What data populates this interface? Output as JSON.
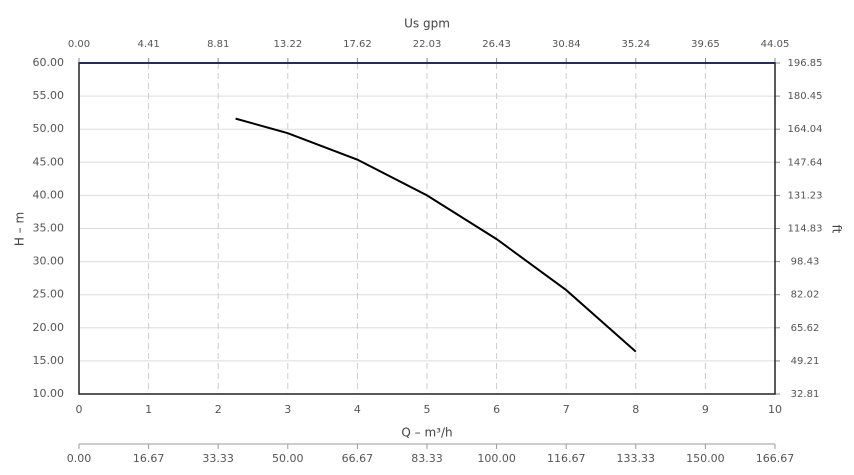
{
  "chart_data": {
    "type": "line",
    "xlabel": "Q – m³/h",
    "ylabel": "H – m",
    "y2label": "ft",
    "x": [
      2.25,
      3,
      4,
      5,
      6,
      7,
      8
    ],
    "series": [
      {
        "color": "#000000",
        "values": [
          51.6,
          49.4,
          45.4,
          40.0,
          33.4,
          25.7,
          16.4
        ]
      }
    ],
    "xlim": [
      0,
      10
    ],
    "xticks": [
      0,
      1,
      2,
      3,
      4,
      5,
      6,
      7,
      8,
      9,
      10
    ],
    "ylim": [
      10,
      60
    ],
    "yticks": [
      {
        "value": 10,
        "label": "10.00"
      },
      {
        "value": 15,
        "label": "15.00"
      },
      {
        "value": 20,
        "label": "20.00"
      },
      {
        "value": 25,
        "label": "25.00"
      },
      {
        "value": 30,
        "label": "30.00"
      },
      {
        "value": 35,
        "label": "35.00"
      },
      {
        "value": 40,
        "label": "40.00"
      },
      {
        "value": 45,
        "label": "45.00"
      },
      {
        "value": 50,
        "label": "50.00"
      },
      {
        "value": 55,
        "label": "55.00"
      },
      {
        "value": 60,
        "label": "60.00"
      }
    ],
    "y2lim": [
      32.81,
      196.85
    ],
    "y2ticks": [
      32.81,
      49.21,
      65.62,
      82.02,
      98.43,
      114.83,
      131.23,
      147.64,
      164.04,
      180.45,
      196.85
    ],
    "top_axis": {
      "label": "Us gpm",
      "lim": [
        0,
        44.05
      ],
      "ticks": [
        {
          "value": 0,
          "label": "0.00"
        },
        4.41,
        8.81,
        13.22,
        17.62,
        22.03,
        26.43,
        30.84,
        35.24,
        39.65,
        44.05
      ]
    },
    "bottom_axis2": {
      "lim": [
        0,
        166.67
      ],
      "ticks": [
        {
          "value": 0,
          "label": "0.00"
        },
        16.67,
        33.33,
        {
          "value": 50,
          "label": "50.00"
        },
        66.67,
        83.33,
        {
          "value": 100,
          "label": "100.00"
        },
        116.67,
        133.33,
        {
          "value": 150,
          "label": "150.00"
        },
        166.67
      ]
    },
    "grid": true
  }
}
